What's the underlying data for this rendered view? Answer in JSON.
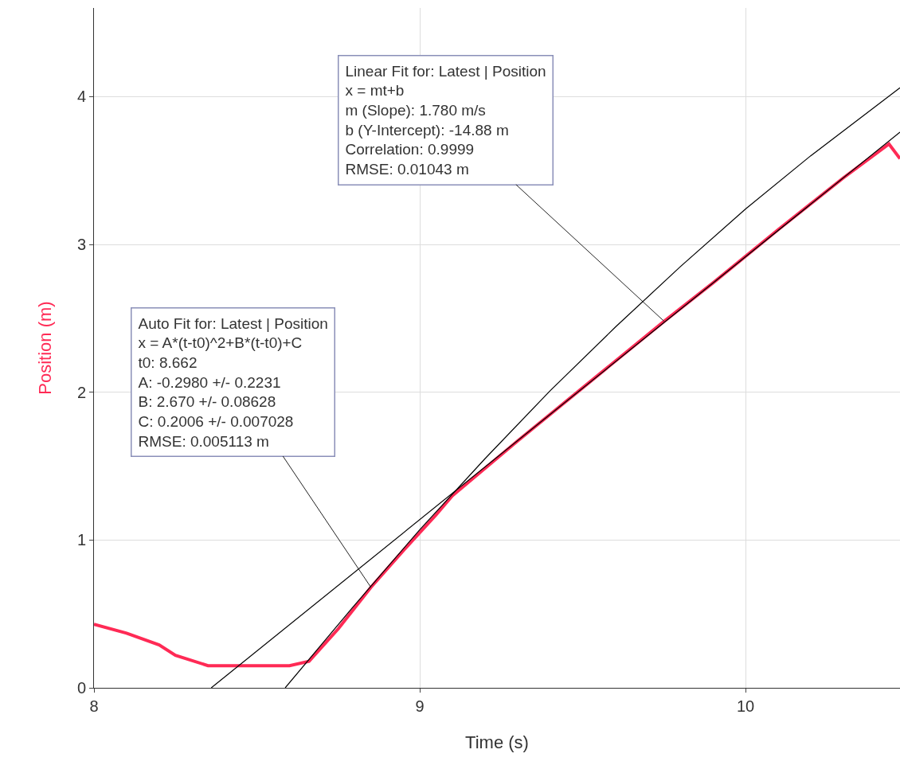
{
  "chart_data": {
    "type": "line",
    "xlabel": "Time (s)",
    "ylabel": "Position (m)",
    "xlim": [
      8,
      10.474
    ],
    "xticks": [
      8,
      9,
      10
    ],
    "ylim": [
      0,
      4.6
    ],
    "yticks": [
      0,
      1,
      2,
      3,
      4
    ],
    "grid": true,
    "marker": "none",
    "line_style": "solid",
    "series": [
      {
        "color": "#ff2a55",
        "x": [
          8.0,
          8.1,
          8.2,
          8.25,
          8.35,
          8.6,
          8.66,
          8.75,
          8.85,
          8.95,
          9.05,
          9.1,
          9.3,
          9.5,
          9.75,
          9.9,
          10.1,
          10.3,
          10.44,
          10.474
        ],
        "values": [
          0.43,
          0.37,
          0.29,
          0.22,
          0.15,
          0.15,
          0.18,
          0.4,
          0.68,
          0.93,
          1.17,
          1.3,
          1.67,
          2.03,
          2.48,
          2.74,
          3.1,
          3.45,
          3.68,
          3.58
        ]
      },
      {
        "color": "#000000",
        "x": [
          8.36,
          10.474
        ],
        "values": [
          0,
          3.76
        ]
      },
      {
        "color": "#000000",
        "x": [
          8.587,
          8.8,
          9.0,
          9.2,
          9.4,
          9.6,
          9.8,
          10.0,
          10.2,
          10.474
        ],
        "values": [
          0,
          0.56,
          1.07,
          1.55,
          2.01,
          2.44,
          2.85,
          3.24,
          3.6,
          4.06
        ]
      }
    ],
    "annotations": [
      {
        "text": "Linear Fit for: Latest | Position\nx = mt+b\nm (Slope): 1.780 m/s\nb (Y-Intercept): -14.88 m\nCorrelation: 0.9999\nRMSE: 0.01043 m",
        "x": 9.75,
        "y": 2.48
      },
      {
        "text": "Auto Fit for: Latest | Position\nx = A*(t-t0)^2+B*(t-t0)+C\nt0: 8.662\nA: -0.2980 +/- 0.2231\nB: 2.670 +/- 0.08628\nC: 0.2006 +/- 0.007028\nRMSE: 0.005113 m",
        "x": 8.85,
        "y": 0.68
      }
    ]
  }
}
